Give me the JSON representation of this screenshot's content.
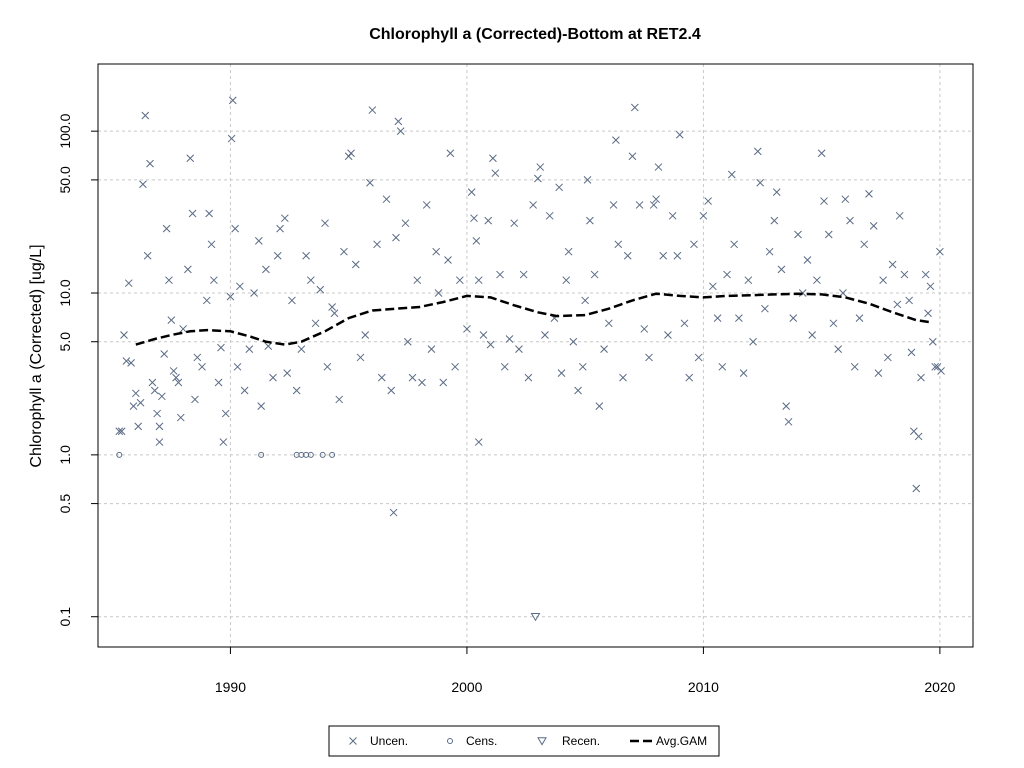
{
  "chart_data": {
    "type": "scatter",
    "title": "Chlorophyll a (Corrected)-Bottom at RET2.4",
    "xlabel": "",
    "ylabel": "Chlorophyll a (Corrected) [ug/L]",
    "y_scale": "log",
    "xlim": [
      1984.4,
      2021.4
    ],
    "ylim": [
      0.065,
      260
    ],
    "grid": true,
    "legend_placement": "bottom",
    "x_ticks": [
      1990,
      2000,
      2010,
      2020
    ],
    "x_tick_labels": [
      "1990",
      "2000",
      "2010",
      "2020"
    ],
    "y_ticks": [
      0.1,
      0.5,
      1.0,
      5.0,
      10.0,
      50.0,
      100.0
    ],
    "y_tick_labels": [
      "0.1",
      "0.5",
      "1.0",
      "5.0",
      "10.0",
      "50.0",
      "100.0"
    ],
    "colors": {
      "points": "#5a6b85",
      "gam": "#000000",
      "grid": "#c8c8c8"
    },
    "legend": [
      {
        "label": "Uncen.",
        "symbol": "x"
      },
      {
        "label": "Cens.",
        "symbol": "circle"
      },
      {
        "label": "Recen.",
        "symbol": "triangle-down"
      },
      {
        "label": "Avg.GAM",
        "symbol": "dash"
      }
    ],
    "series": [
      {
        "name": "Uncen.",
        "symbol": "x",
        "points": [
          [
            1985.4,
            1.4
          ],
          [
            1985.5,
            5.5
          ],
          [
            1985.6,
            3.8
          ],
          [
            1985.7,
            11.5
          ],
          [
            1985.8,
            3.7
          ],
          [
            1985.9,
            2.0
          ],
          [
            1986.0,
            2.4
          ],
          [
            1986.1,
            1.5
          ],
          [
            1986.2,
            2.1
          ],
          [
            1986.3,
            47
          ],
          [
            1986.4,
            125
          ],
          [
            1986.5,
            17
          ],
          [
            1986.6,
            63
          ],
          [
            1986.7,
            2.8
          ],
          [
            1986.8,
            2.5
          ],
          [
            1986.9,
            1.8
          ],
          [
            1987.0,
            1.5
          ],
          [
            1987.1,
            2.3
          ],
          [
            1987.2,
            4.2
          ],
          [
            1987.3,
            25
          ],
          [
            1987.4,
            12
          ],
          [
            1987.5,
            6.8
          ],
          [
            1987.6,
            3.3
          ],
          [
            1987.7,
            3.0
          ],
          [
            1987.8,
            2.8
          ],
          [
            1987.9,
            1.7
          ],
          [
            1988.0,
            6.0
          ],
          [
            1988.2,
            14
          ],
          [
            1988.3,
            68
          ],
          [
            1988.4,
            31
          ],
          [
            1988.5,
            2.2
          ],
          [
            1988.6,
            4.0
          ],
          [
            1988.8,
            3.5
          ],
          [
            1989.0,
            9.0
          ],
          [
            1989.1,
            31
          ],
          [
            1989.2,
            20
          ],
          [
            1989.3,
            12
          ],
          [
            1989.5,
            2.8
          ],
          [
            1989.6,
            4.6
          ],
          [
            1989.8,
            1.8
          ],
          [
            1990.0,
            9.5
          ],
          [
            1990.05,
            90
          ],
          [
            1990.1,
            155
          ],
          [
            1990.2,
            25
          ],
          [
            1990.3,
            3.5
          ],
          [
            1990.4,
            11
          ],
          [
            1990.6,
            2.5
          ],
          [
            1990.8,
            4.5
          ],
          [
            1991.0,
            10
          ],
          [
            1991.2,
            21
          ],
          [
            1991.3,
            2.0
          ],
          [
            1991.5,
            14
          ],
          [
            1991.6,
            4.7
          ],
          [
            1991.8,
            3.0
          ],
          [
            1992.0,
            17
          ],
          [
            1992.1,
            25
          ],
          [
            1992.3,
            29
          ],
          [
            1992.4,
            3.2
          ],
          [
            1992.6,
            9.0
          ],
          [
            1992.8,
            2.5
          ],
          [
            1993.0,
            4.5
          ],
          [
            1993.2,
            17
          ],
          [
            1993.4,
            12
          ],
          [
            1993.6,
            6.5
          ],
          [
            1993.8,
            10.5
          ],
          [
            1994.0,
            27
          ],
          [
            1994.1,
            3.5
          ],
          [
            1994.3,
            8.2
          ],
          [
            1994.4,
            7.5
          ],
          [
            1994.6,
            2.2
          ],
          [
            1994.8,
            18
          ],
          [
            1995.0,
            70
          ],
          [
            1995.1,
            73
          ],
          [
            1995.3,
            15
          ],
          [
            1995.5,
            4.0
          ],
          [
            1995.7,
            5.5
          ],
          [
            1995.9,
            48
          ],
          [
            1996.0,
            135
          ],
          [
            1996.2,
            20
          ],
          [
            1996.4,
            3.0
          ],
          [
            1996.6,
            38
          ],
          [
            1996.8,
            2.5
          ],
          [
            1997.0,
            22
          ],
          [
            1997.1,
            115
          ],
          [
            1997.2,
            100
          ],
          [
            1997.4,
            27
          ],
          [
            1997.5,
            5.0
          ],
          [
            1997.7,
            3.0
          ],
          [
            1997.9,
            12
          ],
          [
            1998.1,
            2.8
          ],
          [
            1998.3,
            35
          ],
          [
            1998.5,
            4.5
          ],
          [
            1998.7,
            18
          ],
          [
            1998.8,
            10
          ],
          [
            1999.0,
            2.8
          ],
          [
            1999.2,
            16
          ],
          [
            1999.3,
            73
          ],
          [
            1999.5,
            3.5
          ],
          [
            1999.7,
            12
          ],
          [
            2000.0,
            6.0
          ],
          [
            2000.2,
            42
          ],
          [
            2000.3,
            29
          ],
          [
            2000.4,
            21
          ],
          [
            2000.5,
            12
          ],
          [
            2000.7,
            5.5
          ],
          [
            2000.9,
            28
          ],
          [
            2001.0,
            4.8
          ],
          [
            2001.1,
            68
          ],
          [
            2001.2,
            55
          ],
          [
            2001.4,
            13
          ],
          [
            2001.6,
            3.5
          ],
          [
            2001.8,
            5.2
          ],
          [
            2002.0,
            27
          ],
          [
            2002.2,
            4.5
          ],
          [
            2002.4,
            13
          ],
          [
            2002.6,
            3.0
          ],
          [
            2002.8,
            35
          ],
          [
            2003.0,
            51
          ],
          [
            2003.1,
            60
          ],
          [
            2003.3,
            5.5
          ],
          [
            2003.5,
            30
          ],
          [
            2003.7,
            7.0
          ],
          [
            2003.9,
            45
          ],
          [
            2004.0,
            3.2
          ],
          [
            2004.2,
            12
          ],
          [
            2004.3,
            18
          ],
          [
            2004.5,
            5.0
          ],
          [
            2004.7,
            2.5
          ],
          [
            2004.9,
            3.5
          ],
          [
            2005.0,
            9.0
          ],
          [
            2005.1,
            50
          ],
          [
            2005.2,
            28
          ],
          [
            2005.4,
            13
          ],
          [
            2005.6,
            2.0
          ],
          [
            2005.8,
            4.5
          ],
          [
            2006.0,
            6.5
          ],
          [
            2006.2,
            35
          ],
          [
            2006.3,
            88
          ],
          [
            2006.4,
            20
          ],
          [
            2006.6,
            3.0
          ],
          [
            2006.8,
            17
          ],
          [
            2007.0,
            70
          ],
          [
            2007.1,
            140
          ],
          [
            2007.3,
            35
          ],
          [
            2007.5,
            6.0
          ],
          [
            2007.7,
            4.0
          ],
          [
            2007.9,
            35
          ],
          [
            2008.0,
            38
          ],
          [
            2008.1,
            60
          ],
          [
            2008.3,
            17
          ],
          [
            2008.5,
            5.5
          ],
          [
            2008.7,
            30
          ],
          [
            2008.9,
            17
          ],
          [
            2009.0,
            95
          ],
          [
            2009.2,
            6.5
          ],
          [
            2009.4,
            3.0
          ],
          [
            2009.6,
            20
          ],
          [
            2009.8,
            4.0
          ],
          [
            2010.0,
            30
          ],
          [
            2010.2,
            37
          ],
          [
            2010.4,
            11
          ],
          [
            2010.6,
            7.0
          ],
          [
            2010.8,
            3.5
          ],
          [
            2011.0,
            13
          ],
          [
            2011.2,
            54
          ],
          [
            2011.3,
            20
          ],
          [
            2011.5,
            7.0
          ],
          [
            2011.7,
            3.2
          ],
          [
            2011.9,
            12
          ],
          [
            2012.1,
            5.0
          ],
          [
            2012.3,
            75
          ],
          [
            2012.4,
            48
          ],
          [
            2012.6,
            8.0
          ],
          [
            2012.8,
            18
          ],
          [
            2013.0,
            28
          ],
          [
            2013.1,
            42
          ],
          [
            2013.3,
            14
          ],
          [
            2013.5,
            2.0
          ],
          [
            2013.6,
            1.6
          ],
          [
            2013.8,
            7.0
          ],
          [
            2014.0,
            23
          ],
          [
            2014.2,
            10
          ],
          [
            2014.4,
            16
          ],
          [
            2014.6,
            5.5
          ],
          [
            2014.8,
            12
          ],
          [
            2015.0,
            73
          ],
          [
            2015.1,
            37
          ],
          [
            2015.3,
            23
          ],
          [
            2015.5,
            6.5
          ],
          [
            2015.7,
            4.5
          ],
          [
            2015.9,
            10
          ],
          [
            2016.0,
            38
          ],
          [
            2016.2,
            28
          ],
          [
            2016.4,
            3.5
          ],
          [
            2016.6,
            7.0
          ],
          [
            2016.8,
            20
          ],
          [
            2017.0,
            41
          ],
          [
            2017.2,
            26
          ],
          [
            2017.4,
            3.2
          ],
          [
            2017.6,
            12
          ],
          [
            2017.8,
            4.0
          ],
          [
            2018.0,
            15
          ],
          [
            2018.2,
            8.5
          ],
          [
            2018.3,
            30
          ],
          [
            2018.5,
            13
          ],
          [
            2018.7,
            9.0
          ],
          [
            2018.8,
            4.3
          ],
          [
            2018.9,
            1.4
          ],
          [
            2019.0,
            0.62
          ],
          [
            2019.1,
            1.3
          ],
          [
            2019.2,
            3.0
          ],
          [
            2019.4,
            13
          ],
          [
            2019.5,
            7.5
          ],
          [
            2019.6,
            11
          ],
          [
            2019.7,
            5.0
          ],
          [
            2019.8,
            3.5
          ],
          [
            2019.9,
            3.5
          ],
          [
            2020.0,
            18
          ],
          [
            2020.05,
            3.3
          ],
          [
            1996.9,
            0.44
          ],
          [
            2000.5,
            1.2
          ],
          [
            1989.7,
            1.2
          ],
          [
            1987.0,
            1.2
          ],
          [
            1985.3,
            1.4
          ]
        ]
      },
      {
        "name": "Cens.",
        "symbol": "circle",
        "points": [
          [
            1985.3,
            1.0
          ],
          [
            1991.3,
            1.0
          ],
          [
            1992.8,
            1.0
          ],
          [
            1993.0,
            1.0
          ],
          [
            1993.2,
            1.0
          ],
          [
            1993.4,
            1.0
          ],
          [
            1993.9,
            1.0
          ],
          [
            1994.3,
            1.0
          ]
        ]
      },
      {
        "name": "Recen.",
        "symbol": "triangle-down",
        "points": [
          [
            2002.9,
            0.1
          ]
        ]
      },
      {
        "name": "Avg.GAM",
        "symbol": "dash",
        "line": [
          [
            1986.0,
            4.8
          ],
          [
            1986.8,
            5.2
          ],
          [
            1987.5,
            5.5
          ],
          [
            1988.3,
            5.8
          ],
          [
            1989.0,
            5.9
          ],
          [
            1990.0,
            5.8
          ],
          [
            1990.8,
            5.4
          ],
          [
            1991.5,
            5.0
          ],
          [
            1992.3,
            4.8
          ],
          [
            1993.0,
            5.0
          ],
          [
            1994.0,
            5.8
          ],
          [
            1995.0,
            7.0
          ],
          [
            1996.0,
            7.8
          ],
          [
            1997.0,
            8.0
          ],
          [
            1998.0,
            8.2
          ],
          [
            1999.0,
            8.8
          ],
          [
            2000.0,
            9.6
          ],
          [
            2001.0,
            9.4
          ],
          [
            2002.0,
            8.4
          ],
          [
            2003.0,
            7.6
          ],
          [
            2003.8,
            7.2
          ],
          [
            2005.0,
            7.3
          ],
          [
            2006.0,
            8.0
          ],
          [
            2007.0,
            9.0
          ],
          [
            2008.0,
            9.9
          ],
          [
            2009.0,
            9.6
          ],
          [
            2010.0,
            9.4
          ],
          [
            2011.0,
            9.6
          ],
          [
            2012.0,
            9.7
          ],
          [
            2013.0,
            9.8
          ],
          [
            2014.0,
            9.9
          ],
          [
            2015.0,
            9.8
          ],
          [
            2016.0,
            9.4
          ],
          [
            2017.0,
            8.6
          ],
          [
            2018.0,
            7.6
          ],
          [
            2019.0,
            6.8
          ],
          [
            2019.6,
            6.6
          ]
        ]
      }
    ]
  }
}
